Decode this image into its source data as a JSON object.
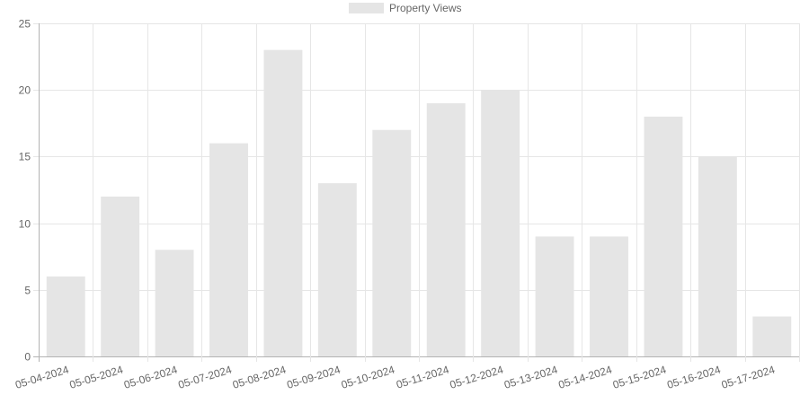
{
  "chart_data": {
    "type": "bar",
    "title": "",
    "xlabel": "",
    "ylabel": "",
    "categories": [
      "05-04-2024",
      "05-05-2024",
      "05-06-2024",
      "05-07-2024",
      "05-08-2024",
      "05-09-2024",
      "05-10-2024",
      "05-11-2024",
      "05-12-2024",
      "05-13-2024",
      "05-14-2024",
      "05-15-2024",
      "05-16-2024",
      "05-17-2024"
    ],
    "series": [
      {
        "name": "Property Views",
        "values": [
          6,
          12,
          8,
          16,
          23,
          13,
          17,
          19,
          20,
          9,
          9,
          18,
          15,
          3
        ],
        "color": "#e5e5e5"
      }
    ],
    "ylim": [
      0,
      25
    ],
    "yticks": [
      0,
      5,
      10,
      15,
      20,
      25
    ],
    "grid": true,
    "legend_position": "top-center"
  }
}
